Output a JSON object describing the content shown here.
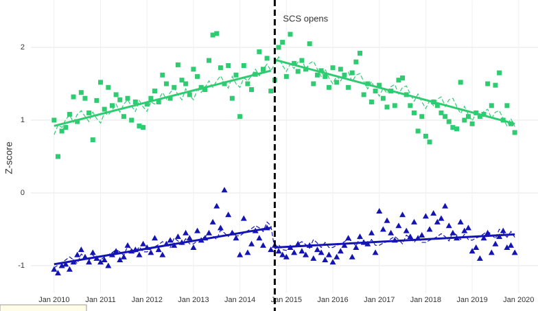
{
  "chart_data": {
    "type": "line",
    "y_label": "Z-score",
    "x": [
      "2010-01",
      "2010-02",
      "2010-03",
      "2010-04",
      "2010-05",
      "2010-06",
      "2010-07",
      "2010-08",
      "2010-09",
      "2010-10",
      "2010-11",
      "2010-12",
      "2011-01",
      "2011-02",
      "2011-03",
      "2011-04",
      "2011-05",
      "2011-06",
      "2011-07",
      "2011-08",
      "2011-09",
      "2011-10",
      "2011-11",
      "2011-12",
      "2012-01",
      "2012-02",
      "2012-03",
      "2012-04",
      "2012-05",
      "2012-06",
      "2012-07",
      "2012-08",
      "2012-09",
      "2012-10",
      "2012-11",
      "2012-12",
      "2013-01",
      "2013-02",
      "2013-03",
      "2013-04",
      "2013-05",
      "2013-06",
      "2013-07",
      "2013-08",
      "2013-09",
      "2013-10",
      "2013-11",
      "2013-12",
      "2014-01",
      "2014-02",
      "2014-03",
      "2014-04",
      "2014-05",
      "2014-06",
      "2014-07",
      "2014-08",
      "2014-09",
      "2014-10",
      "2014-11",
      "2014-12",
      "2015-01",
      "2015-02",
      "2015-03",
      "2015-04",
      "2015-05",
      "2015-06",
      "2015-07",
      "2015-08",
      "2015-09",
      "2015-10",
      "2015-11",
      "2015-12",
      "2016-01",
      "2016-02",
      "2016-03",
      "2016-04",
      "2016-05",
      "2016-06",
      "2016-07",
      "2016-08",
      "2016-09",
      "2016-10",
      "2016-11",
      "2016-12",
      "2017-01",
      "2017-02",
      "2017-03",
      "2017-04",
      "2017-05",
      "2017-06",
      "2017-07",
      "2017-08",
      "2017-09",
      "2017-10",
      "2017-11",
      "2017-12",
      "2018-01",
      "2018-02",
      "2018-03",
      "2018-04",
      "2018-05",
      "2018-06",
      "2018-07",
      "2018-08",
      "2018-09",
      "2018-10",
      "2018-11",
      "2018-12",
      "2019-01",
      "2019-02",
      "2019-03",
      "2019-04",
      "2019-05",
      "2019-06",
      "2019-07",
      "2019-08",
      "2019-09",
      "2019-10",
      "2019-11",
      "2019-12"
    ],
    "series": [
      {
        "color": "#2ecc71",
        "style": "points",
        "marker": "square",
        "values": [
          1.0,
          0.5,
          0.85,
          0.9,
          1.08,
          1.32,
          0.98,
          1.38,
          1.3,
          1.1,
          0.73,
          1.27,
          1.52,
          1.15,
          1.45,
          1.2,
          1.35,
          1.28,
          1.05,
          1.3,
          1.0,
          1.25,
          0.92,
          0.9,
          1.22,
          1.3,
          1.4,
          1.25,
          1.62,
          1.5,
          1.3,
          1.45,
          1.76,
          1.55,
          1.5,
          1.35,
          1.7,
          1.6,
          1.45,
          1.42,
          1.82,
          2.17,
          2.19,
          1.72,
          1.5,
          1.75,
          1.3,
          1.62,
          1.05,
          1.75,
          1.5,
          1.42,
          1.63,
          1.94,
          1.7,
          1.85,
          1.4,
          1.55,
          2.0,
          2.07,
          1.6,
          2.18,
          1.78,
          1.67,
          1.82,
          1.7,
          2.05,
          1.5,
          1.62,
          1.68,
          1.6,
          1.45,
          1.72,
          1.52,
          1.7,
          1.62,
          1.45,
          1.65,
          1.8,
          1.92,
          1.35,
          1.5,
          1.25,
          1.4,
          1.48,
          1.3,
          1.18,
          1.4,
          1.2,
          1.55,
          1.58,
          1.35,
          1.2,
          1.1,
          0.85,
          1.05,
          0.78,
          0.7,
          1.25,
          1.2,
          1.1,
          1.05,
          0.98,
          0.9,
          0.88,
          1.52,
          1.0,
          1.05,
          0.95,
          1.1,
          1.05,
          1.08,
          1.5,
          1.2,
          1.48,
          1.65,
          1.0,
          1.2,
          0.95,
          0.83
        ]
      },
      {
        "color": "#2ecc71",
        "style": "dashed",
        "values": [
          0.8,
          0.93,
          0.9,
          1.01,
          1.07,
          0.97,
          1.08,
          1.13,
          1.05,
          0.98,
          1.11,
          1.02,
          0.96,
          1.1,
          1.07,
          1.14,
          1.22,
          1.11,
          1.22,
          1.28,
          1.19,
          1.12,
          1.27,
          1.18,
          1.12,
          1.25,
          1.22,
          1.28,
          1.38,
          1.29,
          1.38,
          1.44,
          1.35,
          1.28,
          1.43,
          1.34,
          1.28,
          1.42,
          1.38,
          1.45,
          1.54,
          1.45,
          1.54,
          1.61,
          1.51,
          1.44,
          1.6,
          1.5,
          1.45,
          1.58,
          1.54,
          1.61,
          1.7,
          1.61,
          1.7,
          1.77,
          1.68,
          1.77,
          1.87,
          1.75,
          1.67,
          1.77,
          1.71,
          1.8,
          1.83,
          1.7,
          1.78,
          1.81,
          1.7,
          1.6,
          1.7,
          1.58,
          1.5,
          1.61,
          1.54,
          1.63,
          1.66,
          1.53,
          1.62,
          1.64,
          1.53,
          1.43,
          1.53,
          1.42,
          1.33,
          1.44,
          1.37,
          1.46,
          1.49,
          1.36,
          1.45,
          1.47,
          1.36,
          1.26,
          1.36,
          1.25,
          1.16,
          1.27,
          1.2,
          1.29,
          1.32,
          1.19,
          1.28,
          1.3,
          1.19,
          1.09,
          1.19,
          1.08,
          0.99,
          1.1,
          1.03,
          1.12,
          1.15,
          1.02,
          1.11,
          1.13,
          1.02,
          0.92,
          1.02,
          0.91
        ]
      },
      {
        "color": "#1414b4",
        "style": "points",
        "marker": "triangle",
        "values": [
          -1.05,
          -1.1,
          -1.0,
          -0.98,
          -1.05,
          -0.95,
          -0.85,
          -0.78,
          -0.88,
          -0.95,
          -0.82,
          -0.9,
          -0.95,
          -0.92,
          -1.0,
          -0.85,
          -0.8,
          -0.92,
          -0.88,
          -0.72,
          -0.8,
          -0.78,
          -0.85,
          -0.7,
          -0.75,
          -0.82,
          -0.62,
          -0.78,
          -0.85,
          -0.7,
          -0.65,
          -0.72,
          -0.6,
          -0.68,
          -0.55,
          -0.62,
          -0.75,
          -0.52,
          -0.65,
          -0.62,
          -0.55,
          -0.4,
          -0.18,
          -0.48,
          0.04,
          -0.3,
          -0.55,
          -0.62,
          -0.85,
          -0.35,
          -0.82,
          -0.7,
          -0.52,
          -0.62,
          -0.72,
          -0.48,
          -0.78,
          -0.72,
          -0.8,
          -0.85,
          -0.88,
          -0.75,
          -0.82,
          -0.7,
          -0.8,
          -0.85,
          -0.72,
          -0.9,
          -0.78,
          -0.82,
          -0.92,
          -0.85,
          -0.95,
          -0.88,
          -0.8,
          -0.72,
          -0.62,
          -0.88,
          -0.75,
          -0.6,
          -0.68,
          -0.7,
          -0.55,
          -0.82,
          -0.25,
          -0.5,
          -0.38,
          -0.55,
          -0.65,
          -0.45,
          -0.3,
          -0.52,
          -0.6,
          -0.4,
          -0.62,
          -0.58,
          -0.32,
          -0.5,
          -0.28,
          -0.4,
          -0.35,
          -0.18,
          -0.45,
          -0.55,
          -0.62,
          -0.4,
          -0.52,
          -0.48,
          -0.8,
          -0.75,
          -0.9,
          -0.62,
          -0.55,
          -0.82,
          -0.7,
          -0.6,
          -0.52,
          -0.75,
          -0.72,
          -0.82
        ]
      },
      {
        "color": "#1414b4",
        "style": "dashed",
        "values": [
          -1.03,
          -0.99,
          -0.96,
          -0.92,
          -0.88,
          -0.92,
          -0.97,
          -0.84,
          -0.88,
          -0.93,
          -0.85,
          -0.92,
          -0.92,
          -0.88,
          -0.85,
          -0.82,
          -0.78,
          -0.81,
          -0.86,
          -0.73,
          -0.77,
          -0.82,
          -0.74,
          -0.81,
          -0.81,
          -0.77,
          -0.74,
          -0.71,
          -0.67,
          -0.7,
          -0.75,
          -0.62,
          -0.66,
          -0.71,
          -0.63,
          -0.7,
          -0.7,
          -0.66,
          -0.63,
          -0.6,
          -0.56,
          -0.59,
          -0.64,
          -0.51,
          -0.55,
          -0.6,
          -0.52,
          -0.59,
          -0.59,
          -0.55,
          -0.52,
          -0.49,
          -0.45,
          -0.48,
          -0.53,
          -0.4,
          -0.45,
          -0.78,
          -0.71,
          -0.78,
          -0.79,
          -0.76,
          -0.74,
          -0.7,
          -0.67,
          -0.71,
          -0.76,
          -0.64,
          -0.69,
          -0.75,
          -0.68,
          -0.75,
          -0.75,
          -0.72,
          -0.7,
          -0.67,
          -0.63,
          -0.67,
          -0.73,
          -0.61,
          -0.66,
          -0.72,
          -0.64,
          -0.72,
          -0.72,
          -0.69,
          -0.67,
          -0.63,
          -0.6,
          -0.64,
          -0.7,
          -0.58,
          -0.62,
          -0.68,
          -0.61,
          -0.68,
          -0.68,
          -0.65,
          -0.63,
          -0.6,
          -0.56,
          -0.6,
          -0.66,
          -0.54,
          -0.58,
          -0.64,
          -0.57,
          -0.64,
          -0.65,
          -0.62,
          -0.6,
          -0.56,
          -0.53,
          -0.57,
          -0.63,
          -0.5,
          -0.55,
          -0.61,
          -0.53,
          -0.61
        ]
      }
    ],
    "trend_lines": [
      {
        "color": "#2ecc71",
        "x": [
          "2010-01",
          "2014-09"
        ],
        "values": [
          0.92,
          1.68
        ]
      },
      {
        "color": "#2ecc71",
        "x": [
          "2014-10",
          "2019-12"
        ],
        "values": [
          1.83,
          0.95
        ]
      },
      {
        "color": "#1414b4",
        "x": [
          "2010-01",
          "2014-09"
        ],
        "values": [
          -0.98,
          -0.48
        ]
      },
      {
        "color": "#1414b4",
        "x": [
          "2014-10",
          "2019-12"
        ],
        "values": [
          -0.75,
          -0.57
        ]
      }
    ],
    "annotation": {
      "text": "SCS opens",
      "x": "2014-10"
    },
    "xlim": [
      "2009-07",
      "2020-06"
    ],
    "xticks": [
      {
        "value": "2010-01",
        "label": "Jan 2010"
      },
      {
        "value": "2011-01",
        "label": "Jan 2011"
      },
      {
        "value": "2012-01",
        "label": "Jan 2012"
      },
      {
        "value": "2013-01",
        "label": "Jan 2013"
      },
      {
        "value": "2014-01",
        "label": "Jan 2014"
      },
      {
        "value": "2015-01",
        "label": "Jan 2015"
      },
      {
        "value": "2016-01",
        "label": "Jan 2016"
      },
      {
        "value": "2017-01",
        "label": "Jan 2017"
      },
      {
        "value": "2018-01",
        "label": "Jan 2018"
      },
      {
        "value": "2019-01",
        "label": "Jan 2019"
      },
      {
        "value": "2020-01",
        "label": "Jan 2020"
      }
    ],
    "ylim": [
      -1.3,
      2.65
    ],
    "yticks": [
      -1,
      0,
      1,
      2
    ],
    "grid": true
  }
}
